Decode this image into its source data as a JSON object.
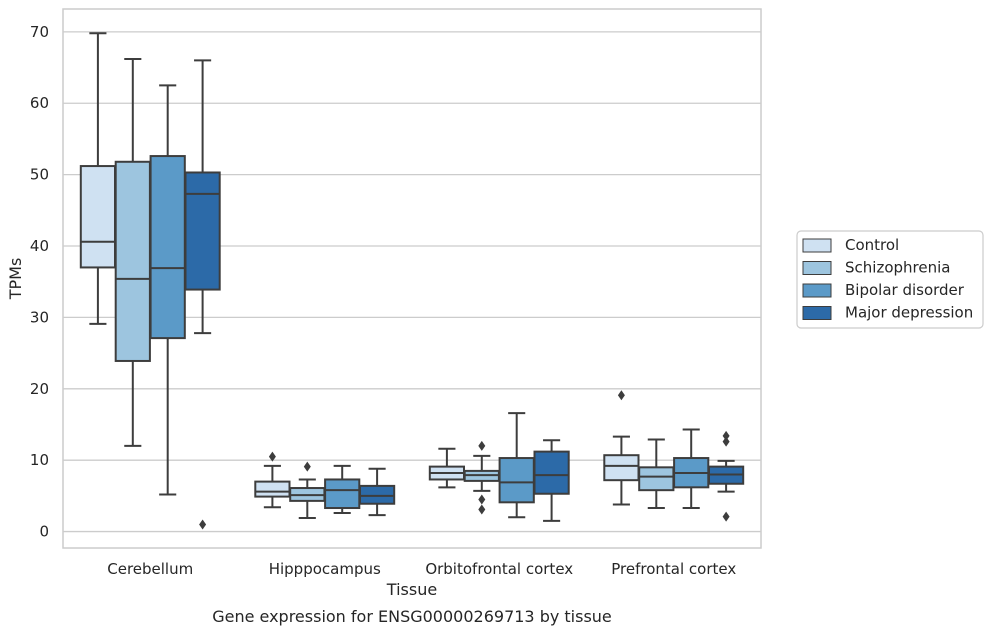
{
  "chart_data": {
    "type": "box",
    "xlabel": "Tissue",
    "ylabel": "TPMs",
    "caption": "Gene expression for ENSG00000269713 by tissue",
    "ylim": [
      -2.3,
      73.2
    ],
    "yticks": [
      0,
      10,
      20,
      30,
      40,
      50,
      60,
      70
    ],
    "grid": "horizontal",
    "legend_position": "right",
    "categories": [
      "Cerebellum",
      "Hipppocampus",
      "Orbitofrontal cortex",
      "Prefrontal cortex"
    ],
    "series": [
      {
        "name": "Control",
        "color": "#cfe1f2",
        "boxes": [
          {
            "min": 29.1,
            "q1": 37.0,
            "median": 40.6,
            "q3": 51.2,
            "max": 69.8,
            "outliers": []
          },
          {
            "min": 3.4,
            "q1": 4.9,
            "median": 5.6,
            "q3": 7.0,
            "max": 9.2,
            "outliers": [
              10.5
            ]
          },
          {
            "min": 6.2,
            "q1": 7.3,
            "median": 8.2,
            "q3": 9.1,
            "max": 11.6,
            "outliers": []
          },
          {
            "min": 3.8,
            "q1": 7.2,
            "median": 9.2,
            "q3": 10.7,
            "max": 13.3,
            "outliers": [
              19.1
            ]
          }
        ]
      },
      {
        "name": "Schizophrenia",
        "color": "#9dc5df",
        "boxes": [
          {
            "min": 12.0,
            "q1": 23.9,
            "median": 35.4,
            "q3": 51.8,
            "max": 66.2,
            "outliers": []
          },
          {
            "min": 1.9,
            "q1": 4.3,
            "median": 5.1,
            "q3": 6.1,
            "max": 7.3,
            "outliers": [
              9.1
            ]
          },
          {
            "min": 5.7,
            "q1": 7.1,
            "median": 7.9,
            "q3": 8.5,
            "max": 10.6,
            "outliers": [
              12.0,
              4.5,
              3.1
            ]
          },
          {
            "min": 3.3,
            "q1": 5.8,
            "median": 7.7,
            "q3": 9.0,
            "max": 12.9,
            "outliers": []
          }
        ]
      },
      {
        "name": "Bipolar disorder",
        "color": "#5b9ac8",
        "boxes": [
          {
            "min": 5.2,
            "q1": 27.1,
            "median": 36.9,
            "q3": 52.6,
            "max": 62.5,
            "outliers": []
          },
          {
            "min": 2.6,
            "q1": 3.3,
            "median": 5.8,
            "q3": 7.3,
            "max": 9.2,
            "outliers": []
          },
          {
            "min": 2.0,
            "q1": 4.1,
            "median": 6.9,
            "q3": 10.3,
            "max": 16.6,
            "outliers": []
          },
          {
            "min": 3.3,
            "q1": 6.2,
            "median": 8.2,
            "q3": 10.3,
            "max": 14.3,
            "outliers": []
          }
        ]
      },
      {
        "name": "Major depression",
        "color": "#2c6aa8",
        "boxes": [
          {
            "min": 27.8,
            "q1": 33.9,
            "median": 47.3,
            "q3": 50.3,
            "max": 66.0,
            "outliers": [
              1.0
            ]
          },
          {
            "min": 2.3,
            "q1": 3.9,
            "median": 5.0,
            "q3": 6.4,
            "max": 8.8,
            "outliers": []
          },
          {
            "min": 1.5,
            "q1": 5.3,
            "median": 7.9,
            "q3": 11.2,
            "max": 12.8,
            "outliers": []
          },
          {
            "min": 5.6,
            "q1": 6.7,
            "median": 8.0,
            "q3": 9.1,
            "max": 9.9,
            "outliers": [
              13.4,
              12.6,
              2.1
            ]
          }
        ]
      }
    ]
  }
}
